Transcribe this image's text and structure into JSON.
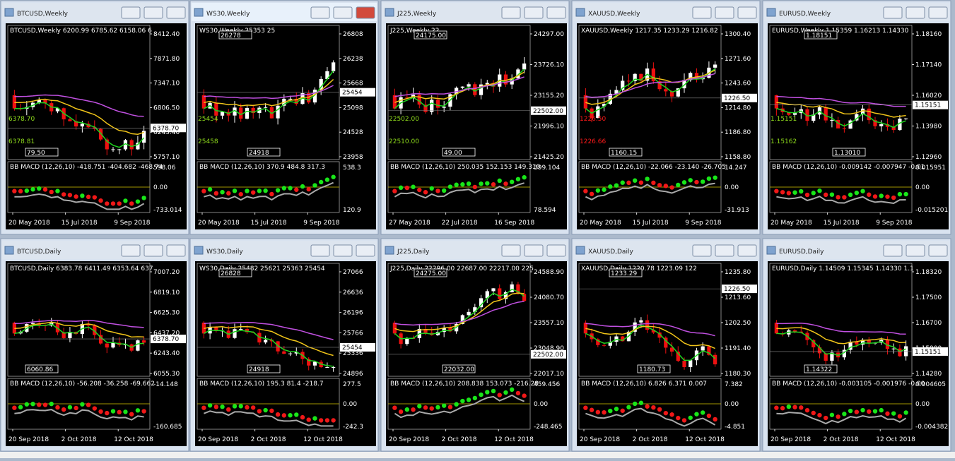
{
  "windows": [
    {
      "title": "BTCUSD,Weekly",
      "header": "BTCUSD,Weekly  6200.99 6785.62 6158.06 6",
      "price_labels": [
        "8412.40",
        "7871.80",
        "7347.10",
        "6806.50",
        "6243.40",
        "5757.10"
      ],
      "last_price": "6378.70",
      "big": [
        "6378.70",
        "6378.81"
      ],
      "big_color": "#8fdc1c",
      "boxes": [
        "79.50"
      ],
      "macd_header": "BB MACD (12,26,10) -418.751 -404.682 -468.74",
      "macd_labels": [
        "598.06",
        "0.00",
        "-733.014"
      ],
      "dates": [
        "20 May 2018",
        "15 Jul 2018",
        "9 Sep 2018"
      ],
      "active": false
    },
    {
      "title": "WS30,Weekly",
      "header": "WS30,Weekly  25353 25",
      "price_labels": [
        "26808",
        "26238",
        "25668",
        "25098",
        "24528",
        "23958"
      ],
      "last_price": "25454",
      "big": [
        "25454",
        "25458"
      ],
      "big_color": "#8fdc1c",
      "boxes": [
        "26278",
        "24918"
      ],
      "macd_header": "BB MACD (12,26,10) 370.9 484.8 317.3",
      "macd_labels": [
        "538.3",
        "120.9"
      ],
      "dates": [
        "20 May 2018",
        "15 Jul 2018",
        "9 Sep 2018"
      ],
      "active": true
    },
    {
      "title": "J225,Weekly",
      "header": "J225,Weekly  22",
      "price_labels": [
        "24297.00",
        "23726.10",
        "23155.20",
        "21996.10",
        "21425.20"
      ],
      "last_price": "22502.00",
      "big": [
        "22502.00",
        "22510.00"
      ],
      "big_color": "#8fdc1c",
      "boxes": [
        "24175.00",
        "49.00"
      ],
      "macd_header": "BB MACD (12,26,10) 250.035 152.153 149.310",
      "macd_labels": [
        "399.104",
        "78.594"
      ],
      "dates": [
        "27 May 2018",
        "22 Jul 2018",
        "16 Sep 2018"
      ],
      "active": false
    },
    {
      "title": "XAUUSD,Weekly",
      "header": "XAUUSD,Weekly  1217.35 1233.29 1216.82",
      "price_labels": [
        "1300.40",
        "1271.60",
        "1243.60",
        "1214.80",
        "1186.80",
        "1158.80"
      ],
      "last_price": "1226.50",
      "big": [
        "1226.50",
        "1226.66"
      ],
      "big_color": "#ff1a1a",
      "boxes": [
        "1160.15"
      ],
      "macd_header": "BB MACD (12,26,10) -22.066 -23.140 -26.705",
      "macd_labels": [
        "14.247",
        "0.00",
        "-31.913"
      ],
      "dates": [
        "20 May 2018",
        "15 Jul 2018",
        "9 Sep 2018"
      ],
      "active": false
    },
    {
      "title": "EURUSD,Weekly",
      "header": "EURUSD,Weekly  1.15359 1.16213 1.14330",
      "price_labels": [
        "1.18160",
        "1.17140",
        "1.16020",
        "1.13980",
        "1.12960"
      ],
      "last_price": "1.15151",
      "big": [
        "1.15151",
        "1.15162"
      ],
      "big_color": "#8fdc1c",
      "boxes": [
        "1.18151",
        "1.13010"
      ],
      "macd_header": "BB MACD (12,26,10) -0.009142 -0.007947 -0.01",
      "macd_labels": [
        "0.015951",
        "0.00",
        "-0.015201"
      ],
      "dates": [
        "20 May 2018",
        "15 Jul 2018",
        "9 Sep 2018"
      ],
      "active": false
    },
    {
      "title": "BTCUSD,Daily",
      "header": "BTCUSD,Daily  6383.78 6411.49 6353.64 637",
      "price_labels": [
        "7007.20",
        "6819.10",
        "6625.30",
        "6437.20",
        "6243.40",
        "6055.30"
      ],
      "last_price": "6378.70",
      "big": [],
      "big_color": "#8fdc1c",
      "boxes": [
        "6060.86"
      ],
      "macd_header": "BB MACD (12,26,10) -56.208 -36.258 -69.662",
      "macd_labels": [
        "-14.148",
        "-160.685"
      ],
      "dates": [
        "20 Sep 2018",
        "2 Oct 2018",
        "12 Oct 2018"
      ],
      "active": false
    },
    {
      "title": "WS30,Daily",
      "header": "WS30,Daily  25482 25621 25363 25454",
      "price_labels": [
        "27066",
        "26636",
        "26196",
        "25766",
        "25336",
        "24896"
      ],
      "last_price": "25454",
      "big": [],
      "big_color": "#8fdc1c",
      "boxes": [
        "26828",
        "24918"
      ],
      "macd_header": "BB MACD (12,26,10) 195.3 81.4 -218.7",
      "macd_labels": [
        "277.5",
        "0.00",
        "-242.3"
      ],
      "dates": [
        "20 Sep 2018",
        "2 Oct 2018",
        "12 Oct 2018"
      ],
      "active": false
    },
    {
      "title": "J225,Daily",
      "header": "J225,Daily  22296.00 22687.00 22217.00 225",
      "price_labels": [
        "24588.90",
        "24080.70",
        "23557.10",
        "23048.90",
        "22017.10"
      ],
      "last_price": "22502.00",
      "big": [],
      "big_color": "#8fdc1c",
      "boxes": [
        "24275.00",
        "22032.00"
      ],
      "macd_header": "BB MACD (12,26,10) 208.838 153.073 -216.28",
      "macd_labels": [
        "459.456",
        "0.00",
        "-248.465"
      ],
      "dates": [
        "20 Sep 2018",
        "2 Oct 2018",
        "12 Oct 2018"
      ],
      "active": false
    },
    {
      "title": "XAUUSD,Daily",
      "header": "XAUUSD,Daily  1220.78 1223.09 122",
      "price_labels": [
        "1235.80",
        "1213.60",
        "1202.50",
        "1191.40",
        "1180.30"
      ],
      "last_price": "1226.50",
      "big": [],
      "big_color": "#8fdc1c",
      "boxes": [
        "1233.29",
        "1180.73"
      ],
      "macd_header": "BB MACD (12,26,10) 6.826 6.371 0.007",
      "macd_labels": [
        "7.382",
        "0.00",
        "-4.851"
      ],
      "dates": [
        "20 Sep 2018",
        "2 Oct 2018",
        "12 Oct 2018"
      ],
      "active": false
    },
    {
      "title": "EURUSD,Daily",
      "header": "EURUSD,Daily  1.14509 1.15345 1.14330 1.1",
      "price_labels": [
        "1.18320",
        "1.17500",
        "1.16700",
        "1.15900",
        "1.14280"
      ],
      "last_price": "1.15151",
      "big": [],
      "big_color": "#8fdc1c",
      "boxes": [
        "1.14322"
      ],
      "macd_header": "BB MACD (12,26,10) -0.003105 -0.001976 -0.00",
      "macd_labels": [
        "0.004605",
        "0.00",
        "-0.004382"
      ],
      "dates": [
        "20 Sep 2018",
        "2 Oct 2018",
        "12 Oct 2018"
      ],
      "active": false
    }
  ]
}
